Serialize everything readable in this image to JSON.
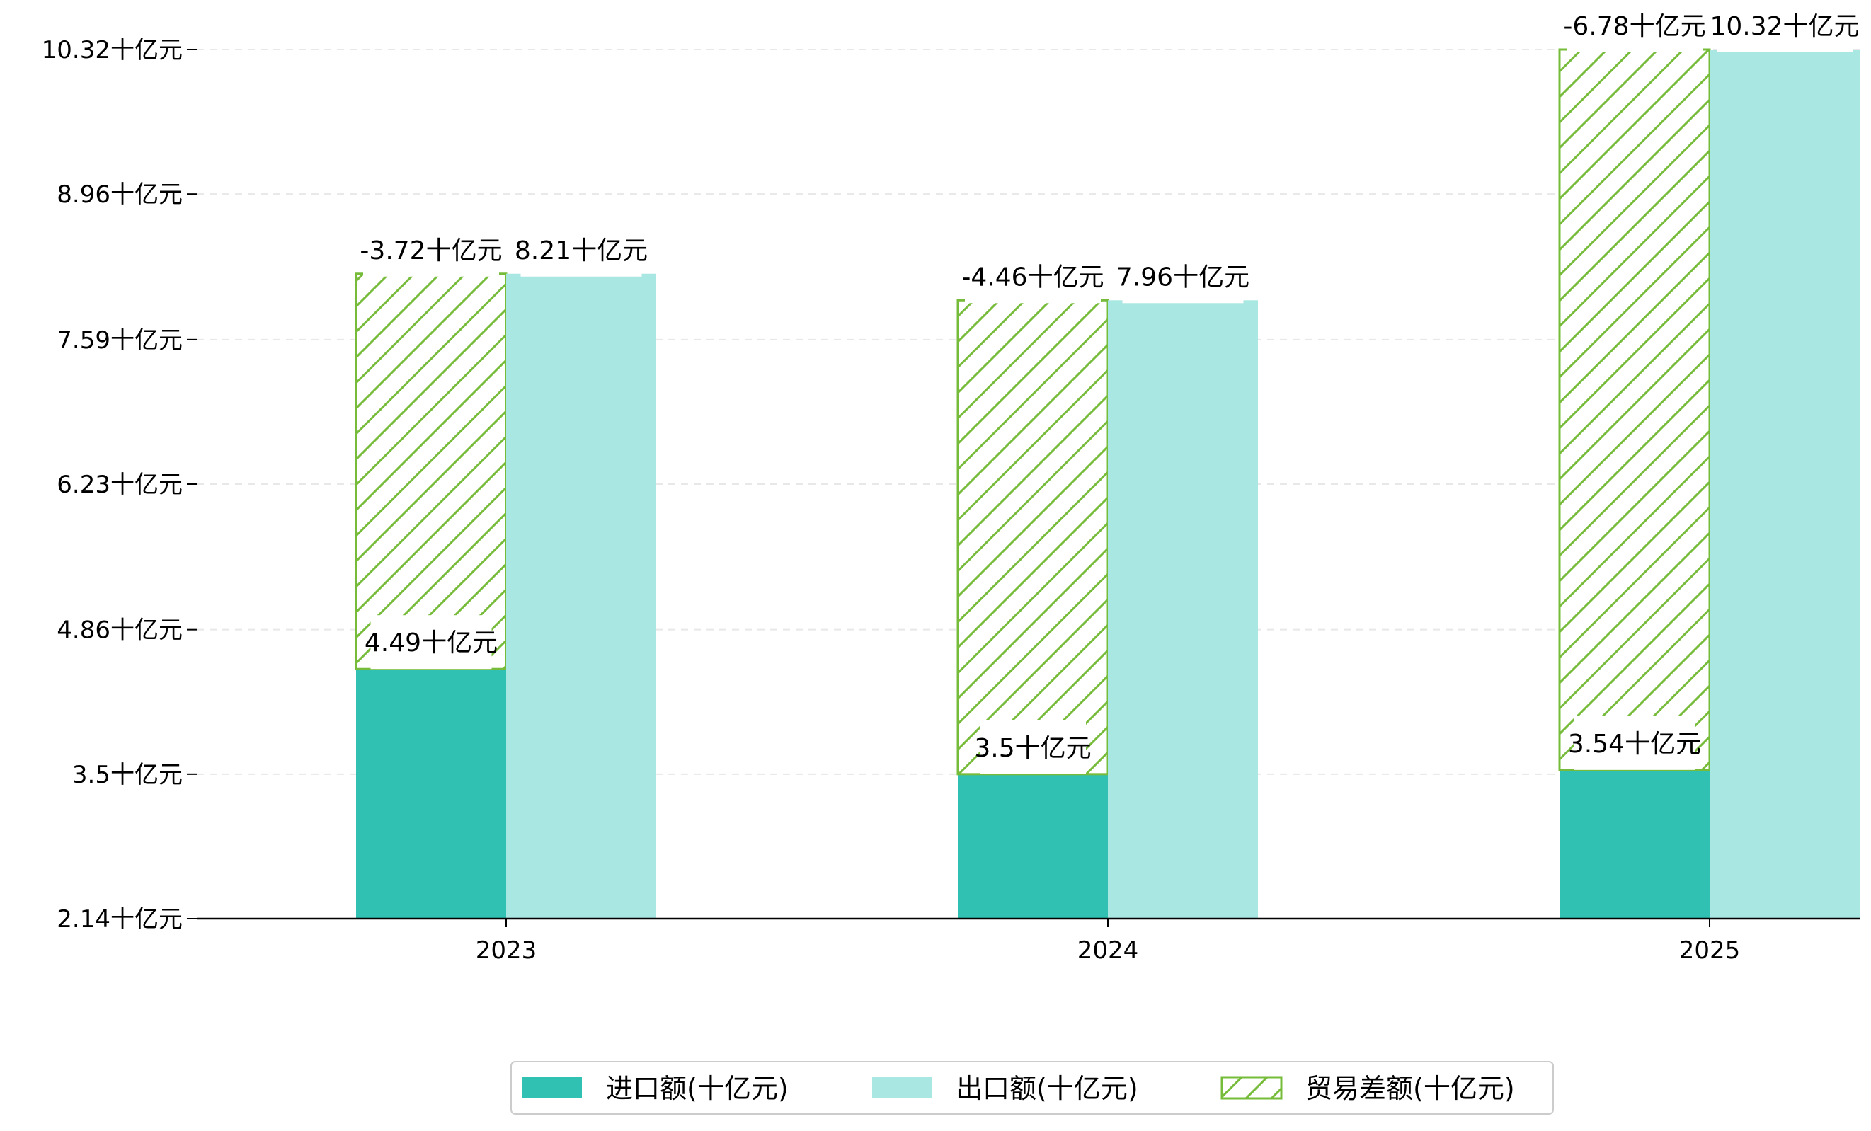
{
  "chart_data": {
    "type": "bar",
    "title": "",
    "xlabel": "",
    "ylabel": "",
    "categories": [
      "2023",
      "2024",
      "2025"
    ],
    "y_ticks": [
      "2.14十亿元",
      "3.5十亿元",
      "4.86十亿元",
      "6.23十亿元",
      "7.59十亿元",
      "8.96十亿元",
      "10.32十亿元"
    ],
    "y_tick_values": [
      2.14,
      3.5,
      4.86,
      6.23,
      7.59,
      8.96,
      10.32
    ],
    "ylim": [
      2.14,
      10.32
    ],
    "grid": "horizontal dashed",
    "legend_position": "bottom-center",
    "unit_suffix": "十亿元",
    "series": [
      {
        "name": "进口额(十亿元)",
        "key": "import",
        "color": "#31c1b3",
        "values": [
          4.49,
          3.5,
          3.54
        ],
        "labels": [
          "4.49十亿元",
          "3.5十亿元",
          "3.54十亿元"
        ]
      },
      {
        "name": "出口额(十亿元)",
        "key": "export",
        "color": "#a9e7e2",
        "values": [
          8.21,
          7.96,
          10.32
        ],
        "labels": [
          "8.21十亿元",
          "7.96十亿元",
          "10.32十亿元"
        ]
      },
      {
        "name": "贸易差额(十亿元)",
        "key": "balance",
        "color": "#76bc3a",
        "pattern": "hatched",
        "values": [
          -3.72,
          -4.46,
          -6.78
        ],
        "labels": [
          "-3.72十亿元",
          "-4.46十亿元",
          "-6.78十亿元"
        ]
      }
    ]
  }
}
